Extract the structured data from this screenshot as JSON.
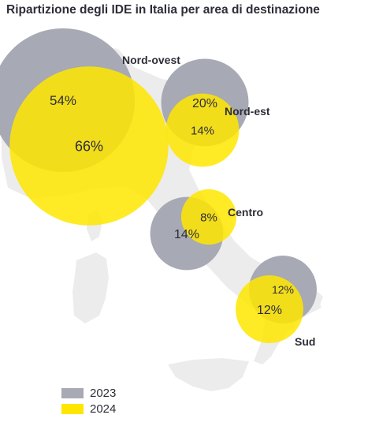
{
  "title": "Ripartizione degli IDE in Italia per area di destinazione",
  "colors": {
    "series_2023": "#a7a9b4",
    "series_2024": "#ffe600",
    "text": "#2e2e38",
    "map": "#ececec"
  },
  "chart_data": {
    "type": "bubble-map",
    "title": "Ripartizione degli IDE in Italia per area di destinazione",
    "unit": "%",
    "categories": [
      "Nord-ovest",
      "Nord-est",
      "Centro",
      "Sud"
    ],
    "series": [
      {
        "name": "2023",
        "color": "#a7a9b4",
        "values": [
          54,
          20,
          14,
          12
        ]
      },
      {
        "name": "2024",
        "color": "#ffe600",
        "values": [
          66,
          14,
          8,
          12
        ]
      }
    ],
    "legend": [
      "2023",
      "2024"
    ],
    "legend_position": "bottom-left"
  }
}
